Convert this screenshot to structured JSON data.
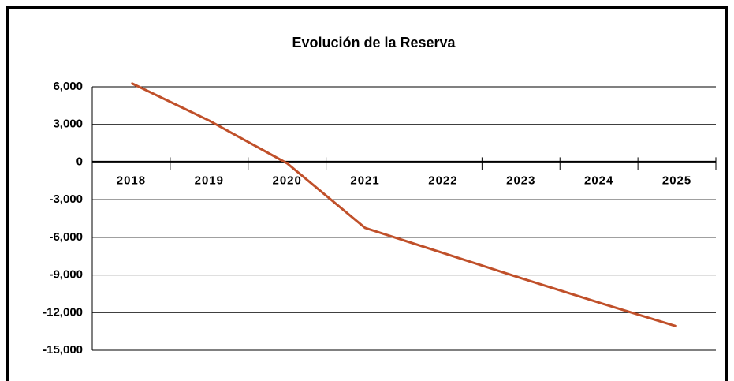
{
  "chart_data": {
    "type": "line",
    "title": "Evolución de la Reserva",
    "categories": [
      "2018",
      "2019",
      "2020",
      "2021",
      "2022",
      "2023",
      "2024",
      "2025"
    ],
    "series": [
      {
        "name": "Reserva",
        "color": "#c0502a",
        "values": [
          6300,
          3300,
          -100,
          -5250,
          -7250,
          -9250,
          -11200,
          -13100
        ]
      }
    ],
    "ylim": [
      -15000,
      6000
    ],
    "yticks": [
      {
        "value": -15000,
        "label": "-15,000"
      },
      {
        "value": -12000,
        "label": "-12,000"
      },
      {
        "value": -9000,
        "label": "-9,000"
      },
      {
        "value": -6000,
        "label": "-6,000"
      },
      {
        "value": -3000,
        "label": "-3,000"
      },
      0,
      {
        "value": 3000,
        "label": "3,000"
      },
      {
        "value": 6000,
        "label": "6,000"
      }
    ],
    "grid": true
  }
}
